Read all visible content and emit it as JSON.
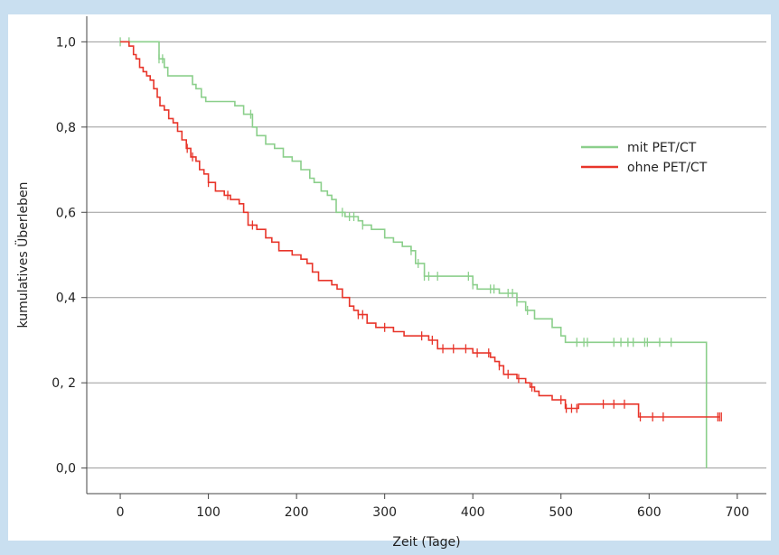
{
  "chart_data": {
    "type": "line",
    "title": "",
    "xlabel": "Zeit (Tage)",
    "ylabel": "kumulatives Überleben",
    "xlim": [
      -38,
      733
    ],
    "ylim": [
      -0.06,
      1.06
    ],
    "x_ticks": [
      0,
      100,
      200,
      300,
      400,
      500,
      600,
      700
    ],
    "x_tick_labels": [
      "0",
      "100",
      "200",
      "300",
      "400",
      "500",
      "600",
      "700"
    ],
    "y_ticks": [
      0.0,
      0.2,
      0.4,
      0.6,
      0.8,
      1.0
    ],
    "y_tick_labels": [
      "0,0",
      "0, 2",
      "0,4",
      "0,6",
      "0,8",
      "1,0"
    ],
    "grid": "horizontal",
    "legend_position": "right",
    "series": [
      {
        "name": "mit PET/CT",
        "color": "#8bcf8b",
        "step": true,
        "points": [
          [
            0,
            1
          ],
          [
            44,
            1
          ],
          [
            44,
            0.96
          ],
          [
            50,
            0.96
          ],
          [
            50,
            0.94
          ],
          [
            54,
            0.94
          ],
          [
            54,
            0.92
          ],
          [
            82,
            0.92
          ],
          [
            82,
            0.9
          ],
          [
            86,
            0.9
          ],
          [
            86,
            0.89
          ],
          [
            92,
            0.89
          ],
          [
            92,
            0.87
          ],
          [
            97,
            0.87
          ],
          [
            97,
            0.86
          ],
          [
            130,
            0.86
          ],
          [
            130,
            0.85
          ],
          [
            140,
            0.85
          ],
          [
            140,
            0.83
          ],
          [
            150,
            0.83
          ],
          [
            150,
            0.8
          ],
          [
            155,
            0.8
          ],
          [
            155,
            0.78
          ],
          [
            165,
            0.78
          ],
          [
            165,
            0.76
          ],
          [
            175,
            0.76
          ],
          [
            175,
            0.75
          ],
          [
            185,
            0.75
          ],
          [
            185,
            0.73
          ],
          [
            195,
            0.73
          ],
          [
            195,
            0.72
          ],
          [
            205,
            0.72
          ],
          [
            205,
            0.7
          ],
          [
            215,
            0.7
          ],
          [
            215,
            0.68
          ],
          [
            220,
            0.68
          ],
          [
            220,
            0.67
          ],
          [
            228,
            0.67
          ],
          [
            228,
            0.65
          ],
          [
            235,
            0.65
          ],
          [
            235,
            0.64
          ],
          [
            240,
            0.64
          ],
          [
            240,
            0.63
          ],
          [
            245,
            0.63
          ],
          [
            245,
            0.6
          ],
          [
            255,
            0.6
          ],
          [
            255,
            0.59
          ],
          [
            270,
            0.59
          ],
          [
            270,
            0.58
          ],
          [
            275,
            0.58
          ],
          [
            275,
            0.57
          ],
          [
            285,
            0.57
          ],
          [
            285,
            0.56
          ],
          [
            300,
            0.56
          ],
          [
            300,
            0.54
          ],
          [
            310,
            0.54
          ],
          [
            310,
            0.53
          ],
          [
            320,
            0.53
          ],
          [
            320,
            0.52
          ],
          [
            330,
            0.52
          ],
          [
            330,
            0.51
          ],
          [
            335,
            0.51
          ],
          [
            335,
            0.48
          ],
          [
            345,
            0.48
          ],
          [
            345,
            0.45
          ],
          [
            400,
            0.45
          ],
          [
            400,
            0.43
          ],
          [
            405,
            0.43
          ],
          [
            405,
            0.42
          ],
          [
            430,
            0.42
          ],
          [
            430,
            0.41
          ],
          [
            450,
            0.41
          ],
          [
            450,
            0.39
          ],
          [
            460,
            0.39
          ],
          [
            460,
            0.37
          ],
          [
            470,
            0.37
          ],
          [
            470,
            0.35
          ],
          [
            490,
            0.35
          ],
          [
            490,
            0.33
          ],
          [
            500,
            0.33
          ],
          [
            500,
            0.31
          ],
          [
            505,
            0.31
          ],
          [
            505,
            0.295
          ],
          [
            665,
            0.295
          ],
          [
            665,
            0.0
          ]
        ],
        "censor_x": [
          0,
          10,
          44,
          48,
          148,
          252,
          260,
          265,
          275,
          330,
          338,
          345,
          350,
          360,
          395,
          400,
          420,
          424,
          440,
          445,
          450,
          462,
          518,
          526,
          530,
          560,
          568,
          576,
          582,
          595,
          598,
          612,
          625
        ]
      },
      {
        "name": "ohne PET/CT",
        "color": "#e8352a",
        "step": true,
        "points": [
          [
            0,
            1
          ],
          [
            10,
            1
          ],
          [
            10,
            0.99
          ],
          [
            15,
            0.99
          ],
          [
            15,
            0.97
          ],
          [
            18,
            0.97
          ],
          [
            18,
            0.96
          ],
          [
            22,
            0.96
          ],
          [
            22,
            0.94
          ],
          [
            26,
            0.94
          ],
          [
            26,
            0.93
          ],
          [
            30,
            0.93
          ],
          [
            30,
            0.92
          ],
          [
            34,
            0.92
          ],
          [
            34,
            0.91
          ],
          [
            38,
            0.91
          ],
          [
            38,
            0.89
          ],
          [
            42,
            0.89
          ],
          [
            42,
            0.87
          ],
          [
            45,
            0.87
          ],
          [
            45,
            0.85
          ],
          [
            50,
            0.85
          ],
          [
            50,
            0.84
          ],
          [
            55,
            0.84
          ],
          [
            55,
            0.82
          ],
          [
            60,
            0.82
          ],
          [
            60,
            0.81
          ],
          [
            65,
            0.81
          ],
          [
            65,
            0.79
          ],
          [
            70,
            0.79
          ],
          [
            70,
            0.77
          ],
          [
            75,
            0.77
          ],
          [
            75,
            0.75
          ],
          [
            80,
            0.75
          ],
          [
            80,
            0.73
          ],
          [
            86,
            0.73
          ],
          [
            86,
            0.72
          ],
          [
            90,
            0.72
          ],
          [
            90,
            0.7
          ],
          [
            95,
            0.7
          ],
          [
            95,
            0.69
          ],
          [
            100,
            0.69
          ],
          [
            100,
            0.67
          ],
          [
            108,
            0.67
          ],
          [
            108,
            0.65
          ],
          [
            118,
            0.65
          ],
          [
            118,
            0.64
          ],
          [
            125,
            0.64
          ],
          [
            125,
            0.63
          ],
          [
            135,
            0.63
          ],
          [
            135,
            0.62
          ],
          [
            140,
            0.62
          ],
          [
            140,
            0.6
          ],
          [
            145,
            0.6
          ],
          [
            145,
            0.57
          ],
          [
            155,
            0.57
          ],
          [
            155,
            0.56
          ],
          [
            165,
            0.56
          ],
          [
            165,
            0.54
          ],
          [
            172,
            0.54
          ],
          [
            172,
            0.53
          ],
          [
            180,
            0.53
          ],
          [
            180,
            0.51
          ],
          [
            195,
            0.51
          ],
          [
            195,
            0.5
          ],
          [
            205,
            0.5
          ],
          [
            205,
            0.49
          ],
          [
            212,
            0.49
          ],
          [
            212,
            0.48
          ],
          [
            218,
            0.48
          ],
          [
            218,
            0.46
          ],
          [
            225,
            0.46
          ],
          [
            225,
            0.44
          ],
          [
            240,
            0.44
          ],
          [
            240,
            0.43
          ],
          [
            246,
            0.43
          ],
          [
            246,
            0.42
          ],
          [
            252,
            0.42
          ],
          [
            252,
            0.4
          ],
          [
            260,
            0.4
          ],
          [
            260,
            0.38
          ],
          [
            265,
            0.38
          ],
          [
            265,
            0.37
          ],
          [
            270,
            0.37
          ],
          [
            270,
            0.36
          ],
          [
            280,
            0.36
          ],
          [
            280,
            0.34
          ],
          [
            290,
            0.34
          ],
          [
            290,
            0.33
          ],
          [
            310,
            0.33
          ],
          [
            310,
            0.32
          ],
          [
            322,
            0.32
          ],
          [
            322,
            0.31
          ],
          [
            350,
            0.31
          ],
          [
            350,
            0.3
          ],
          [
            360,
            0.3
          ],
          [
            360,
            0.28
          ],
          [
            400,
            0.28
          ],
          [
            400,
            0.27
          ],
          [
            420,
            0.27
          ],
          [
            420,
            0.26
          ],
          [
            425,
            0.26
          ],
          [
            425,
            0.25
          ],
          [
            430,
            0.25
          ],
          [
            430,
            0.24
          ],
          [
            435,
            0.24
          ],
          [
            435,
            0.22
          ],
          [
            450,
            0.22
          ],
          [
            450,
            0.21
          ],
          [
            460,
            0.21
          ],
          [
            460,
            0.2
          ],
          [
            465,
            0.2
          ],
          [
            465,
            0.19
          ],
          [
            470,
            0.19
          ],
          [
            470,
            0.18
          ],
          [
            475,
            0.18
          ],
          [
            475,
            0.17
          ],
          [
            490,
            0.17
          ],
          [
            490,
            0.16
          ],
          [
            505,
            0.16
          ],
          [
            505,
            0.14
          ],
          [
            520,
            0.14
          ],
          [
            520,
            0.15
          ],
          [
            588,
            0.15
          ],
          [
            588,
            0.12
          ],
          [
            680,
            0.12
          ]
        ],
        "censor_x": [
          76,
          82,
          100,
          122,
          150,
          270,
          275,
          300,
          342,
          354,
          366,
          378,
          392,
          405,
          418,
          430,
          440,
          452,
          467,
          500,
          506,
          512,
          518,
          548,
          560,
          572,
          590,
          604,
          616,
          678,
          680,
          682
        ]
      }
    ]
  }
}
